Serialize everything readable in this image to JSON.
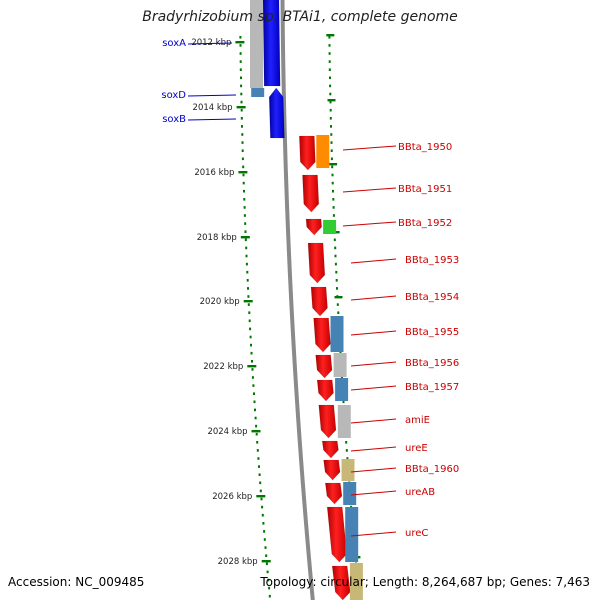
{
  "title": "Bradyrhizobium sp. BTAi1, complete genome",
  "footer": {
    "accession": "Accession: NC_009485",
    "topology": "Topology: circular; Length: 8,264,687 bp; Genes: 7,463"
  },
  "colors": {
    "forward_gene": "#ff0000",
    "reverse_gene": "#0000ff",
    "label_right": "#cc0000",
    "label_left": "#0000cc",
    "tick": "#007700"
  },
  "scale_labels": [
    "2012 kbp",
    "2014 kbp",
    "2016 kbp",
    "2018 kbp",
    "2020 kbp",
    "2022 kbp",
    "2024 kbp",
    "2026 kbp",
    "2028 kbp"
  ],
  "left_labels": [
    "soxA",
    "soxD",
    "soxB"
  ],
  "right_labels": [
    "BBta_1950",
    "BBta_1951",
    "BBta_1952",
    "BBta_1953",
    "BBta_1954",
    "BBta_1955",
    "BBta_1956",
    "BBta_1957",
    "amiE",
    "ureE",
    "BBta_1960",
    "ureAB",
    "ureC"
  ],
  "cog_colors": [
    "#ff8c00",
    "#33cc33",
    "#4682b4",
    "#b8b8b8",
    "#c8b878"
  ]
}
